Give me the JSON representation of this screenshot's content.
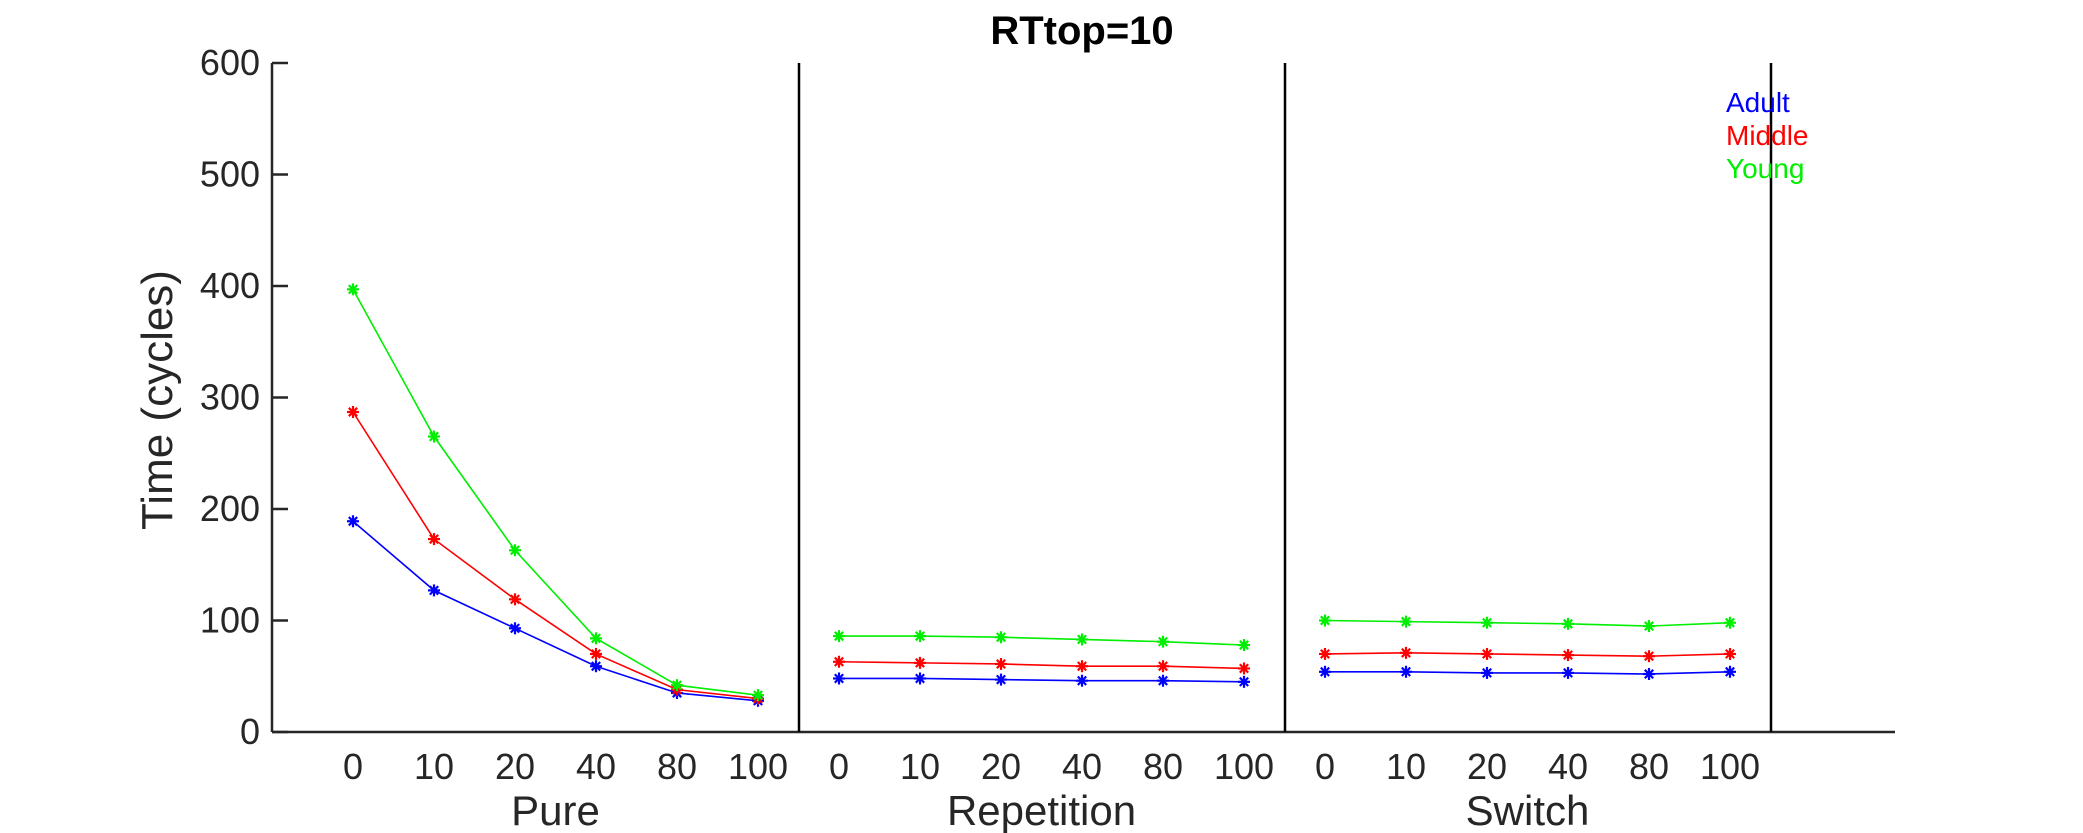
{
  "chart_data": {
    "type": "line",
    "title": "RTtop=10",
    "ylabel": "Time (cycles)",
    "ylim": [
      0,
      600
    ],
    "yticks": [
      0,
      100,
      200,
      300,
      400,
      500,
      600
    ],
    "grid": false,
    "legend_position": "top-right",
    "groups": [
      {
        "label": "Pure",
        "categories": [
          "0",
          "10",
          "20",
          "40",
          "80",
          "100"
        ]
      },
      {
        "label": "Repetition",
        "categories": [
          "0",
          "10",
          "20",
          "40",
          "80",
          "100"
        ]
      },
      {
        "label": "Switch",
        "categories": [
          "0",
          "10",
          "20",
          "40",
          "80",
          "100"
        ]
      }
    ],
    "series": [
      {
        "name": "Adult",
        "color": "#0000ff",
        "values": [
          [
            189,
            127,
            93,
            59,
            35,
            28
          ],
          [
            48,
            48,
            47,
            46,
            46,
            45
          ],
          [
            54,
            54,
            53,
            53,
            52,
            54
          ]
        ]
      },
      {
        "name": "Middle",
        "color": "#ff0000",
        "values": [
          [
            287,
            173,
            119,
            70,
            38,
            30
          ],
          [
            63,
            62,
            61,
            59,
            59,
            57
          ],
          [
            70,
            71,
            70,
            69,
            68,
            70
          ]
        ]
      },
      {
        "name": "Young",
        "color": "#00ee00",
        "values": [
          [
            397,
            265,
            163,
            84,
            42,
            33
          ],
          [
            86,
            86,
            85,
            83,
            81,
            78
          ],
          [
            100,
            99,
            98,
            97,
            95,
            98
          ]
        ]
      }
    ]
  }
}
